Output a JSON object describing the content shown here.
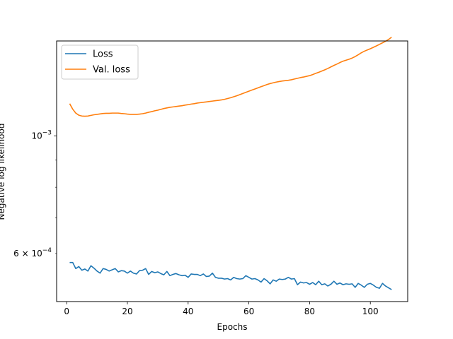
{
  "chart_data": {
    "type": "line",
    "xlabel": "Epochs",
    "ylabel": "Negative log likelihood",
    "xlim": [
      -3.3,
      112.3
    ],
    "ylim": [
      0.000487,
      0.00151
    ],
    "yscale": "log",
    "grid": false,
    "legend_position": "top-left",
    "x_ticks": [
      0,
      20,
      40,
      60,
      80,
      100
    ],
    "x_tick_labels": [
      "0",
      "20",
      "40",
      "60",
      "80",
      "100"
    ],
    "y_major_ticks": [
      0.001
    ],
    "y_major_tick_labels": [
      {
        "base": "10",
        "exp": "−3"
      }
    ],
    "y_minor_ticks": [
      0.0006,
      0.0007,
      0.0008,
      0.0009
    ],
    "y_minor_tick_labels": [
      {
        "value": 0.0006,
        "mantissa": "6",
        "base": "10",
        "exp": "−4"
      }
    ],
    "series": [
      {
        "name": "Loss",
        "color": "#1f77b4",
        "x": [
          1,
          2,
          3,
          4,
          5,
          6,
          7,
          8,
          9,
          10,
          11,
          12,
          13,
          14,
          15,
          16,
          17,
          18,
          19,
          20,
          21,
          22,
          23,
          24,
          25,
          26,
          27,
          28,
          29,
          30,
          31,
          32,
          33,
          34,
          35,
          36,
          37,
          38,
          39,
          40,
          41,
          42,
          43,
          44,
          45,
          46,
          47,
          48,
          49,
          50,
          51,
          52,
          53,
          54,
          55,
          56,
          57,
          58,
          59,
          60,
          61,
          62,
          63,
          64,
          65,
          66,
          67,
          68,
          69,
          70,
          71,
          72,
          73,
          74,
          75,
          76,
          77,
          78,
          79,
          80,
          81,
          82,
          83,
          84,
          85,
          86,
          87,
          88,
          89,
          90,
          91,
          92,
          93,
          94,
          95,
          96,
          97,
          98,
          99,
          100,
          101,
          102,
          103,
          104,
          105,
          106,
          107
        ],
        "values": [
          0.000577,
          0.000577,
          0.000562,
          0.000567,
          0.000558,
          0.000561,
          0.000556,
          0.000569,
          0.000563,
          0.000556,
          0.000551,
          0.000562,
          0.00056,
          0.000556,
          0.000559,
          0.000562,
          0.000554,
          0.000557,
          0.000556,
          0.000551,
          0.000556,
          0.000551,
          0.000549,
          0.000557,
          0.000558,
          0.000562,
          0.000548,
          0.000555,
          0.000552,
          0.000554,
          0.00055,
          0.000547,
          0.000555,
          0.000545,
          0.000548,
          0.00055,
          0.000547,
          0.000545,
          0.000546,
          0.000541,
          0.000549,
          0.000548,
          0.000548,
          0.000545,
          0.000549,
          0.000543,
          0.000544,
          0.000551,
          0.000541,
          0.000539,
          0.000539,
          0.000537,
          0.000538,
          0.000535,
          0.000541,
          0.000538,
          0.000537,
          0.000538,
          0.000545,
          0.000541,
          0.000537,
          0.000538,
          0.000535,
          0.00053,
          0.000538,
          0.000533,
          0.000526,
          0.000535,
          0.000532,
          0.000537,
          0.000536,
          0.000537,
          0.000541,
          0.000537,
          0.000538,
          0.000524,
          0.00053,
          0.000528,
          0.000529,
          0.000525,
          0.000529,
          0.000524,
          0.000532,
          0.000524,
          0.000526,
          0.000521,
          0.000525,
          0.000532,
          0.000525,
          0.000528,
          0.000524,
          0.000526,
          0.000525,
          0.000526,
          0.000518,
          0.000527,
          0.000523,
          0.000518,
          0.000525,
          0.000527,
          0.000523,
          0.000518,
          0.000516,
          0.000527,
          0.000521,
          0.000517,
          0.000513
        ]
      },
      {
        "name": "Val. loss",
        "color": "#ff7f0e",
        "x": [
          1,
          2,
          3,
          4,
          5,
          6,
          7,
          8,
          9,
          10,
          11,
          12,
          13,
          14,
          15,
          16,
          17,
          18,
          19,
          20,
          21,
          22,
          23,
          24,
          25,
          26,
          27,
          28,
          29,
          30,
          31,
          32,
          33,
          34,
          35,
          36,
          37,
          38,
          39,
          40,
          41,
          42,
          43,
          44,
          45,
          46,
          47,
          48,
          49,
          50,
          51,
          52,
          53,
          54,
          55,
          56,
          57,
          58,
          59,
          60,
          61,
          62,
          63,
          64,
          65,
          66,
          67,
          68,
          69,
          70,
          71,
          72,
          73,
          74,
          75,
          76,
          77,
          78,
          79,
          80,
          81,
          82,
          83,
          84,
          85,
          86,
          87,
          88,
          89,
          90,
          91,
          92,
          93,
          94,
          95,
          96,
          97,
          98,
          99,
          100,
          101,
          102,
          103,
          104,
          105,
          106,
          107
        ],
        "values": [
          0.00115,
          0.001123,
          0.001104,
          0.001094,
          0.00109,
          0.001089,
          0.00109,
          0.001093,
          0.001096,
          0.001098,
          0.0011,
          0.001102,
          0.001103,
          0.001103,
          0.001104,
          0.001104,
          0.001104,
          0.001102,
          0.001101,
          0.001099,
          0.001098,
          0.001098,
          0.001098,
          0.001099,
          0.001101,
          0.001104,
          0.001108,
          0.001111,
          0.001115,
          0.001118,
          0.001122,
          0.001126,
          0.001129,
          0.001132,
          0.001134,
          0.001136,
          0.001138,
          0.00114,
          0.001143,
          0.001145,
          0.001148,
          0.00115,
          0.001153,
          0.001155,
          0.001157,
          0.001159,
          0.001161,
          0.001163,
          0.001165,
          0.001167,
          0.001169,
          0.001172,
          0.001176,
          0.00118,
          0.001185,
          0.00119,
          0.001196,
          0.001202,
          0.001208,
          0.001214,
          0.00122,
          0.001226,
          0.001232,
          0.001238,
          0.001244,
          0.00125,
          0.001255,
          0.001259,
          0.001263,
          0.001266,
          0.001269,
          0.001271,
          0.001273,
          0.001276,
          0.00128,
          0.001284,
          0.001288,
          0.001291,
          0.001295,
          0.001299,
          0.001305,
          0.001312,
          0.001318,
          0.001325,
          0.001332,
          0.00134,
          0.001349,
          0.001358,
          0.001366,
          0.001375,
          0.001383,
          0.001389,
          0.001395,
          0.001402,
          0.001411,
          0.001422,
          0.001434,
          0.001444,
          0.001452,
          0.00146,
          0.001469,
          0.001478,
          0.001488,
          0.001498,
          0.001508,
          0.00152,
          0.001535
        ]
      }
    ]
  }
}
